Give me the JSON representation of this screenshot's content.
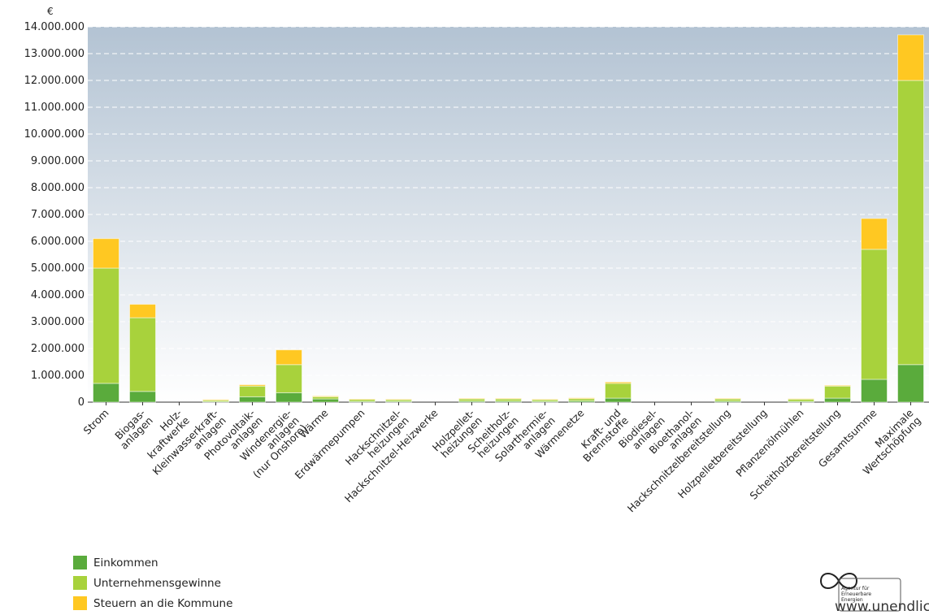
{
  "chart_data": {
    "type": "stacked_bar",
    "y_label": "€",
    "categories": [
      "Strom",
      "Biogas-\nanlagen",
      "Holz-\nkraftwerke",
      "Kleinwasserkraft-\nanlagen",
      "Photovoltaik-\nanlagen",
      "Windenergie-\nanlagen\n(nur Onshore)",
      "Wärme",
      "Erdwärmepumpen",
      "Hackschnitzel-\nheizungen",
      "Hackschnitzel-Heizwerke",
      "Holzpellet-\nheizungen",
      "Scheitholz-\nheizungen",
      "Solarthermie-\nanlagen",
      "Wärmenetze",
      "Kraft- und\nBrennstoffe",
      "Biodiesel-\nanlagen",
      "Bioethanol-\nanlagen",
      "Hackschnitzelbereitstellung",
      "Holzpelletbereitstellung",
      "Pflanzenölmühlen",
      "Scheitholzbereitstellung",
      "Gesamtsumme",
      "Maximale\nWertschöpfung"
    ],
    "series": [
      {
        "name": "Einkommen",
        "color": "#5aab3c",
        "values": [
          700000,
          400000,
          0,
          20000,
          200000,
          350000,
          120000,
          30000,
          30000,
          0,
          40000,
          40000,
          30000,
          50000,
          150000,
          0,
          0,
          40000,
          0,
          30000,
          150000,
          850000,
          1400000
        ]
      },
      {
        "name": "Unternehmensgewinne",
        "color": "#a8d23c",
        "values": [
          4300000,
          2750000,
          0,
          50000,
          400000,
          1050000,
          80000,
          70000,
          60000,
          0,
          80000,
          80000,
          60000,
          80000,
          550000,
          0,
          0,
          80000,
          0,
          80000,
          450000,
          4850000,
          10600000
        ]
      },
      {
        "name": "Steuern an die Kommune",
        "color": "#ffc822",
        "values": [
          1100000,
          500000,
          0,
          30000,
          50000,
          550000,
          30000,
          20000,
          20000,
          0,
          20000,
          20000,
          20000,
          30000,
          50000,
          0,
          0,
          20000,
          0,
          20000,
          30000,
          1150000,
          1700000
        ]
      }
    ],
    "ylim": [
      0,
      14000000
    ],
    "yticks": [
      0,
      {
        "value": 1000000,
        "label": "1.000.000"
      },
      {
        "value": 2000000,
        "label": "2.000.000"
      },
      {
        "value": 3000000,
        "label": "3.000.000"
      },
      {
        "value": 4000000,
        "label": "4.000.000"
      },
      {
        "value": 5000000,
        "label": "5.000.000"
      },
      {
        "value": 6000000,
        "label": "6.000.000"
      },
      {
        "value": 7000000,
        "label": "7.000.000"
      },
      {
        "value": 8000000,
        "label": "8.000.000"
      },
      {
        "value": 9000000,
        "label": "9.000.000"
      },
      {
        "value": 10000000,
        "label": "10.000.000"
      },
      {
        "value": 11000000,
        "label": "11.000.000"
      },
      {
        "value": 12000000,
        "label": "12.000.000"
      },
      {
        "value": 13000000,
        "label": "13.000.000"
      },
      {
        "value": 14000000,
        "label": "14.000.000"
      }
    ],
    "grid": true,
    "legend": "bottom-left",
    "source": "www.unendlich-viel-energie.de",
    "logo_text": [
      "Agentur für",
      "Erneuerbare",
      "Energien"
    ]
  }
}
